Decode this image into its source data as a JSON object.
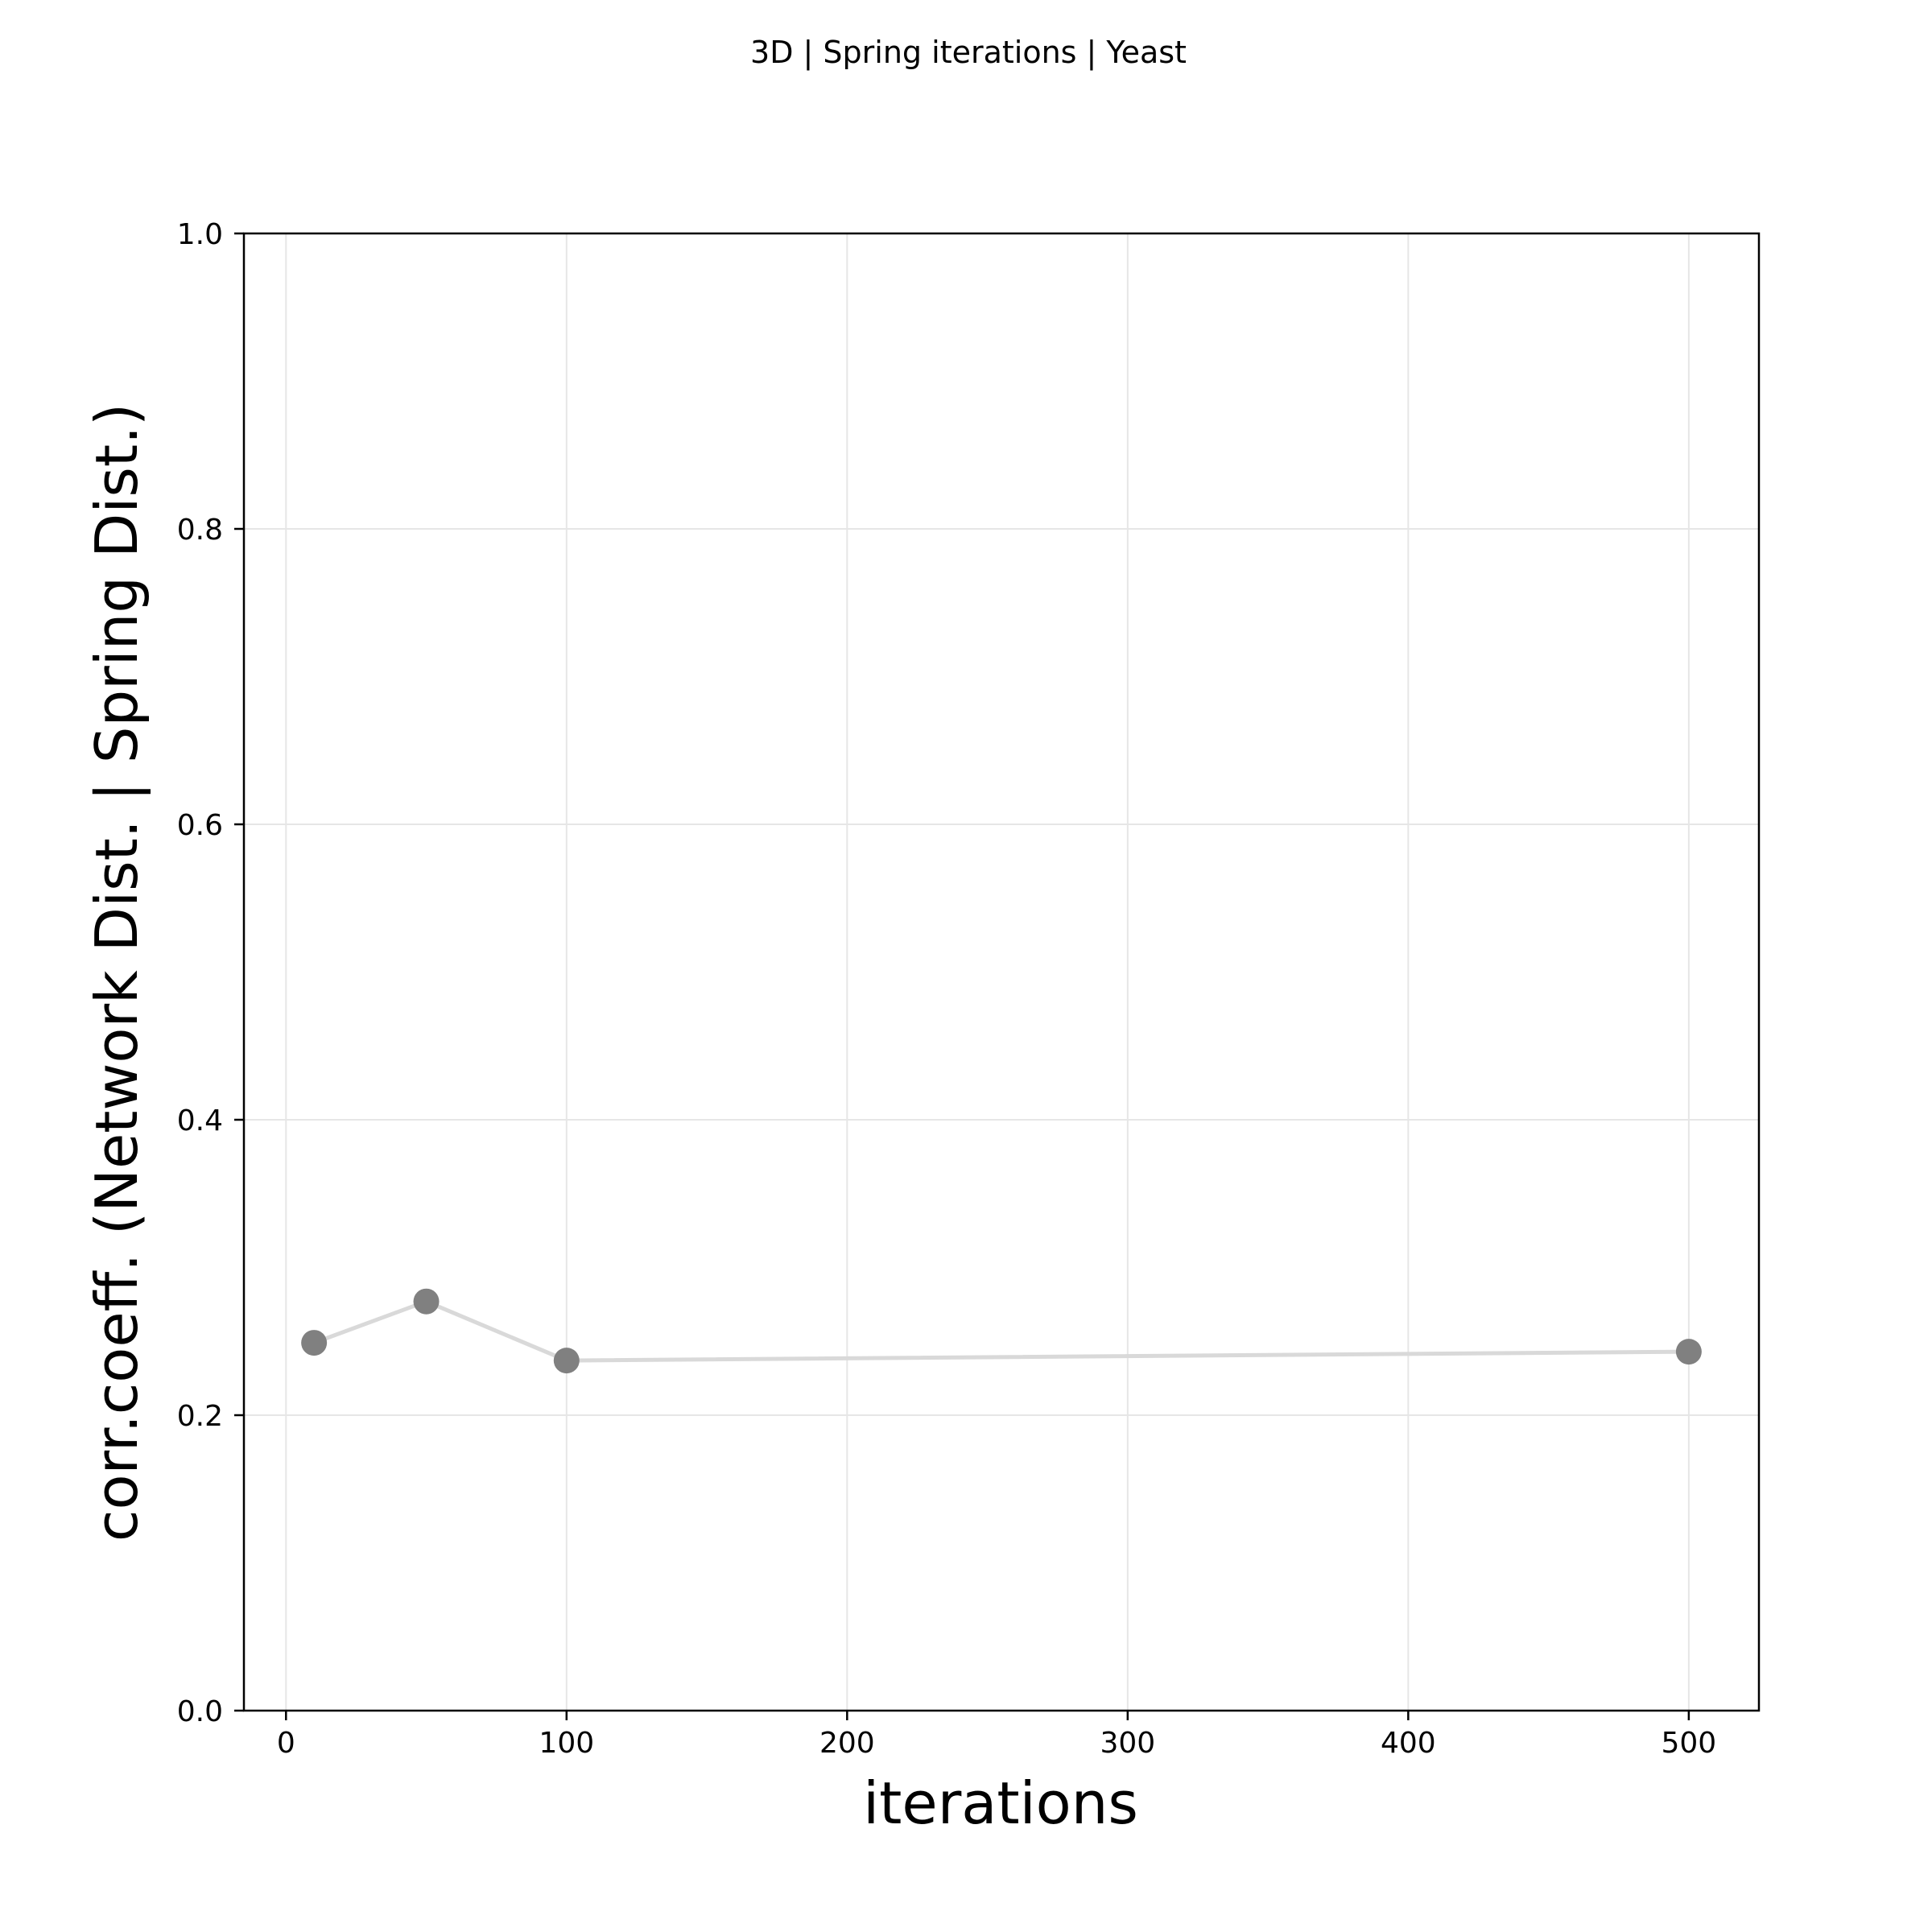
{
  "chart_data": {
    "type": "line",
    "title": "3D | Spring iterations | Yeast",
    "xlabel": "iterations",
    "ylabel": "corr.coeff. (Network Dist. | Spring Dist.)",
    "xlim": [
      -15,
      525
    ],
    "ylim": [
      0.0,
      1.0
    ],
    "xticks": [
      0,
      100,
      200,
      300,
      400,
      500
    ],
    "xtick_labels": [
      "0",
      "100",
      "200",
      "300",
      "400",
      "500"
    ],
    "yticks": [
      0.0,
      0.2,
      0.4,
      0.6,
      0.8,
      1.0
    ],
    "ytick_labels": [
      "0.0",
      "0.2",
      "0.4",
      "0.6",
      "0.8",
      "1.0"
    ],
    "grid": true,
    "series": [
      {
        "x": [
          10,
          50,
          100,
          500
        ],
        "values": [
          0.249,
          0.277,
          0.237,
          0.243
        ],
        "line_color": "#d9d9d9",
        "marker_color": "#808080"
      }
    ]
  }
}
